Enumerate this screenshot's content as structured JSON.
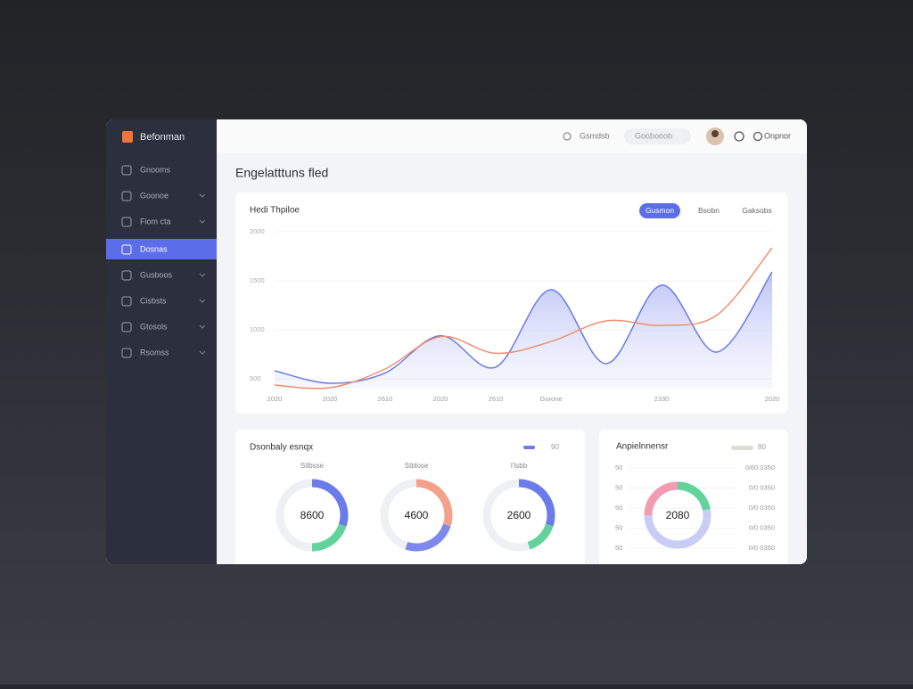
{
  "sidebar": {
    "brand": "Befonman",
    "items": [
      {
        "label": "Gnooms",
        "chevron": false,
        "active": false
      },
      {
        "label": "Goonoe",
        "chevron": true,
        "active": false
      },
      {
        "label": "Fiom cta",
        "chevron": true,
        "active": false
      },
      {
        "label": "Dosnas",
        "chevron": false,
        "active": true
      },
      {
        "label": "Gusboos",
        "chevron": true,
        "active": false
      },
      {
        "label": "Cisbsts",
        "chevron": true,
        "active": false
      },
      {
        "label": "Gtosols",
        "chevron": true,
        "active": false
      },
      {
        "label": "Rsomss",
        "chevron": true,
        "active": false
      }
    ]
  },
  "header": {
    "search_label": "Gsmdsb",
    "search_placeholder": "Goobooob",
    "user": "Onpnor"
  },
  "page_title": "Engelatttuns fled",
  "trend_chart": {
    "type": "line",
    "title": "Hedi Thpiloe",
    "tabs": [
      "Gusmon",
      "Bsobn",
      "Gaksobs"
    ],
    "categories": [
      "2020",
      "2020",
      "2610",
      "2020",
      "2610",
      "Gorone",
      null,
      "2330",
      null,
      "2020"
    ],
    "ylim": [
      400,
      2100
    ],
    "yticks": [
      500,
      1000,
      1500,
      2000
    ],
    "grid": true,
    "series": [
      {
        "color": "#6a7be6",
        "area": true,
        "values": [
          582,
          455,
          560,
          940,
          620,
          1409,
          655,
          1455,
          773,
          1591
        ]
      },
      {
        "color": "#ef8e6e",
        "area": false,
        "values": [
          436,
          409,
          600,
          930,
          760,
          880,
          1091,
          1045,
          1150,
          1836
        ]
      }
    ]
  },
  "bottom_left": {
    "title": "Dsonbaly esnqx",
    "legend": "90",
    "donuts": [
      {
        "label": "Stlbsse",
        "center": "8600",
        "segments": [
          {
            "color": "#6b7bea",
            "value": 30
          },
          {
            "color": "#62d39b",
            "value": 20
          }
        ]
      },
      {
        "label": "Stblose",
        "center": "4600",
        "segments": [
          {
            "color": "#f4a08a",
            "value": 30
          },
          {
            "color": "#7d89ec",
            "value": 25
          }
        ]
      },
      {
        "label": "I'lsbb",
        "center": "2600",
        "segments": [
          {
            "color": "#6b7bea",
            "value": 30
          },
          {
            "color": "#62d39b",
            "value": 15
          }
        ]
      }
    ]
  },
  "bottom_right": {
    "title": "Anpielnnensr",
    "legend": "80",
    "rows": [
      {
        "left": "50",
        "right": "0/60 0350"
      },
      {
        "left": "50",
        "right": "0/0 0350"
      },
      {
        "left": "50",
        "right": "0/0 0350"
      },
      {
        "left": "50",
        "right": "0/0 0350"
      },
      {
        "left": "50",
        "right": "0/0 0350"
      }
    ],
    "donut": {
      "center": "2080",
      "segments": [
        {
          "color": "#62d39b",
          "value": 22
        },
        {
          "color": "#c9cdf6",
          "value": 53
        },
        {
          "color": "#f29bb2",
          "value": 25
        }
      ]
    }
  }
}
